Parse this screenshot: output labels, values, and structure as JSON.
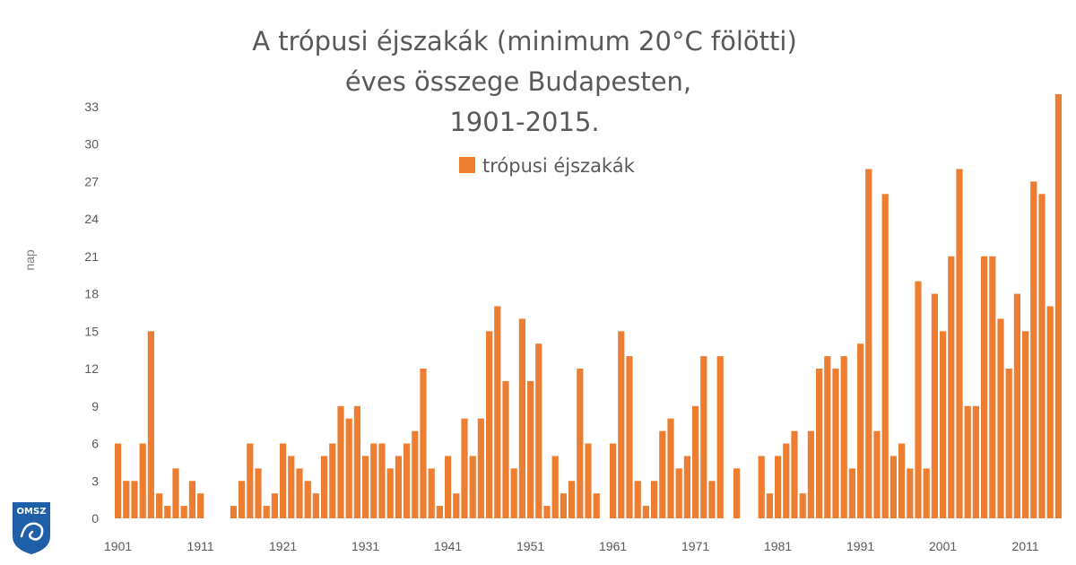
{
  "chart_data": {
    "type": "bar",
    "title": [
      "A trópusi éjszakák (minimum 20°C fölötti)",
      "éves összege Budapesten,",
      "1901-2015."
    ],
    "ylabel": "nap",
    "xlabel": "",
    "ylim": [
      0,
      34
    ],
    "y_ticks": [
      0,
      3,
      6,
      9,
      12,
      15,
      18,
      21,
      24,
      27,
      30,
      33
    ],
    "x_tick_labels": [
      "1901",
      "1911",
      "1921",
      "1931",
      "1941",
      "1951",
      "1961",
      "1971",
      "1981",
      "1991",
      "2001",
      "2011"
    ],
    "legend_position": "top-center",
    "series": [
      {
        "name": "trópusi éjszakák",
        "color": "#ed7d31",
        "x": [
          1901,
          1902,
          1903,
          1904,
          1905,
          1906,
          1907,
          1908,
          1909,
          1910,
          1911,
          1912,
          1913,
          1914,
          1915,
          1916,
          1917,
          1918,
          1919,
          1920,
          1921,
          1922,
          1923,
          1924,
          1925,
          1926,
          1927,
          1928,
          1929,
          1930,
          1931,
          1932,
          1933,
          1934,
          1935,
          1936,
          1937,
          1938,
          1939,
          1940,
          1941,
          1942,
          1943,
          1944,
          1945,
          1946,
          1947,
          1948,
          1949,
          1950,
          1951,
          1952,
          1953,
          1954,
          1955,
          1956,
          1957,
          1958,
          1959,
          1960,
          1961,
          1962,
          1963,
          1964,
          1965,
          1966,
          1967,
          1968,
          1969,
          1970,
          1971,
          1972,
          1973,
          1974,
          1975,
          1976,
          1977,
          1978,
          1979,
          1980,
          1981,
          1982,
          1983,
          1984,
          1985,
          1986,
          1987,
          1988,
          1989,
          1990,
          1991,
          1992,
          1993,
          1994,
          1995,
          1996,
          1997,
          1998,
          1999,
          2000,
          2001,
          2002,
          2003,
          2004,
          2005,
          2006,
          2007,
          2008,
          2009,
          2010,
          2011,
          2012,
          2013,
          2014,
          2015
        ],
        "values": [
          6,
          3,
          3,
          6,
          15,
          2,
          1,
          4,
          1,
          3,
          2,
          0,
          0,
          0,
          1,
          3,
          6,
          4,
          1,
          2,
          6,
          5,
          4,
          3,
          2,
          5,
          6,
          9,
          8,
          9,
          5,
          6,
          6,
          4,
          5,
          6,
          7,
          12,
          4,
          1,
          5,
          2,
          8,
          5,
          8,
          15,
          17,
          11,
          4,
          16,
          11,
          14,
          1,
          5,
          2,
          3,
          12,
          6,
          2,
          0,
          6,
          15,
          13,
          3,
          1,
          3,
          7,
          8,
          4,
          5,
          9,
          13,
          3,
          13,
          0,
          4,
          0,
          0,
          5,
          2,
          5,
          6,
          7,
          2,
          7,
          12,
          13,
          12,
          13,
          4,
          14,
          28,
          7,
          26,
          5,
          6,
          4,
          19,
          4,
          18,
          15,
          21,
          28,
          9,
          9,
          21,
          21,
          16,
          12,
          18,
          15,
          27,
          26,
          17,
          34
        ]
      }
    ]
  },
  "logo": {
    "text": "OMSZ",
    "color": "#1f5fa8"
  }
}
